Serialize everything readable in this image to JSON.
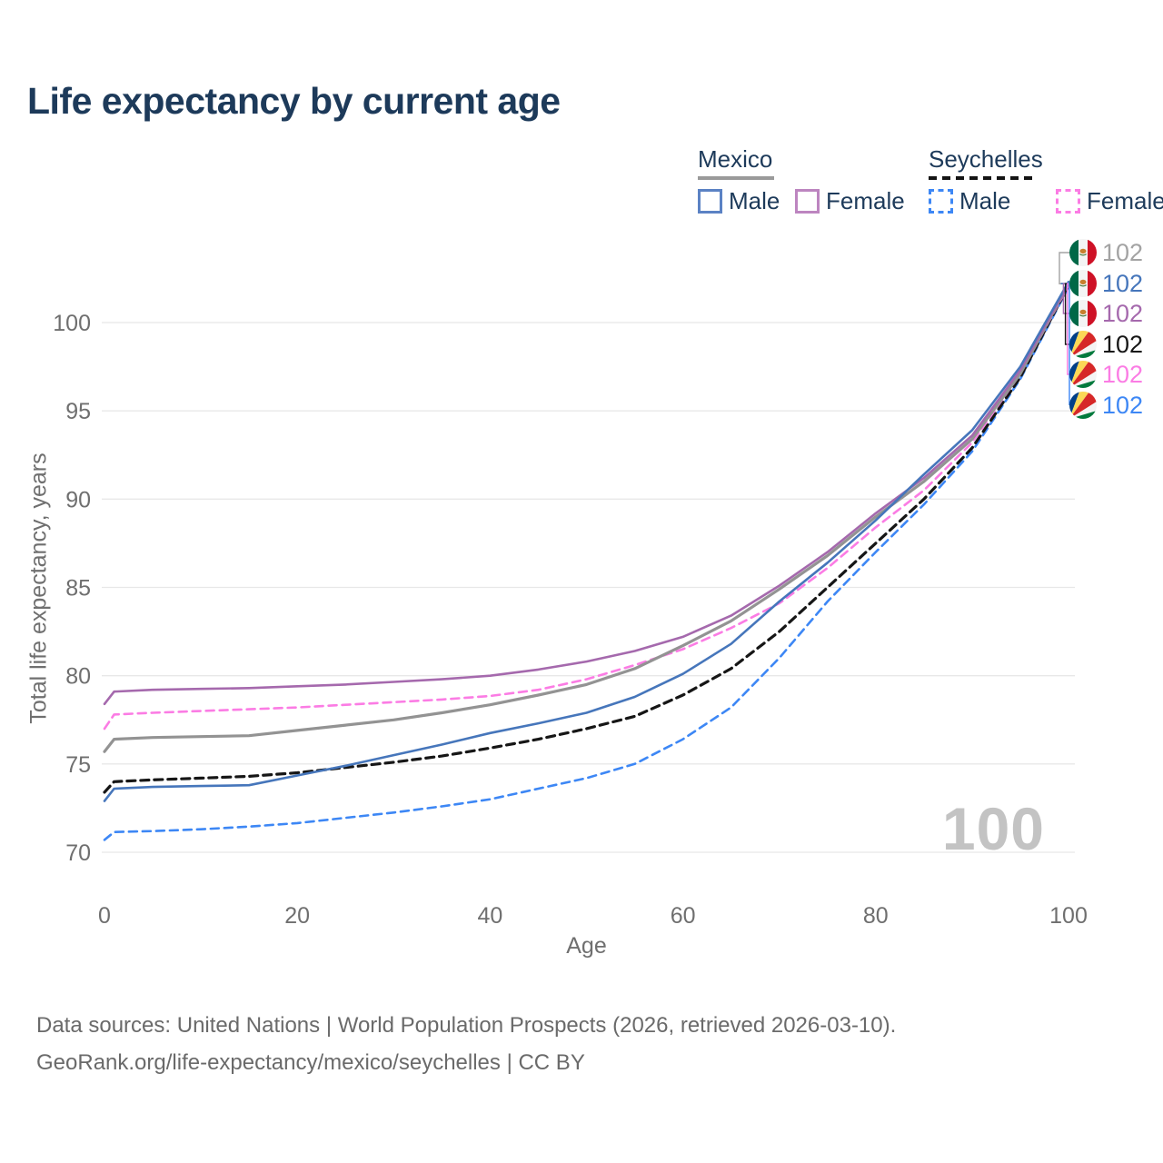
{
  "title": "Life expectancy by current age",
  "legend": {
    "mexico": {
      "label": "Mexico",
      "male_label": "Male",
      "female_label": "Female",
      "male_color": "#5b82c4",
      "female_color": "#bd85c0",
      "line_style": "solid",
      "underline_color": "#9a9a9a"
    },
    "seychelles": {
      "label": "Seychelles",
      "male_label": "Male",
      "female_label": "Female",
      "male_color": "#3d87f5",
      "female_color": "#fb7ce4",
      "line_style": "dashed",
      "underline_color": "#141414"
    }
  },
  "chart_data": {
    "type": "line",
    "title": "Life expectancy by current age",
    "xlabel": "Age",
    "ylabel": "Total life expectancy, years",
    "xlim": [
      0,
      100
    ],
    "ylim": [
      70,
      100
    ],
    "xticks": [
      0,
      20,
      40,
      60,
      80,
      100
    ],
    "yticks": [
      70,
      75,
      80,
      85,
      90,
      95,
      100
    ],
    "grid": "horizontal-only",
    "legend_position": "top-right",
    "x": [
      0,
      1,
      5,
      10,
      15,
      20,
      25,
      30,
      35,
      40,
      45,
      50,
      55,
      60,
      65,
      70,
      75,
      80,
      85,
      90,
      95,
      100
    ],
    "series": [
      {
        "name": "Seychelles — Male",
        "country": "Seychelles",
        "group": "Male",
        "style": "dashed",
        "color": "#3d87f5",
        "width": 2.6,
        "values": [
          70.7,
          71.15,
          71.2,
          71.3,
          71.45,
          71.65,
          71.95,
          72.25,
          72.6,
          73.0,
          73.6,
          74.2,
          75.0,
          76.4,
          78.2,
          81.0,
          84.2,
          87.0,
          89.7,
          92.7,
          96.8,
          102.0
        ]
      },
      {
        "name": "Seychelles — Total",
        "country": "Seychelles",
        "group": "Total",
        "style": "dashed",
        "color": "#161616",
        "width": 3.2,
        "values": [
          73.4,
          74.0,
          74.1,
          74.2,
          74.3,
          74.5,
          74.8,
          75.1,
          75.45,
          75.9,
          76.4,
          77.0,
          77.7,
          78.9,
          80.4,
          82.5,
          85.0,
          87.5,
          90.0,
          92.9,
          96.9,
          102.1
        ]
      },
      {
        "name": "Seychelles — Female",
        "country": "Seychelles",
        "group": "Female",
        "style": "dashed",
        "color": "#fb7ce4",
        "width": 2.6,
        "values": [
          77.0,
          77.8,
          77.9,
          78.0,
          78.1,
          78.2,
          78.35,
          78.5,
          78.65,
          78.85,
          79.2,
          79.8,
          80.6,
          81.5,
          82.7,
          84.1,
          86.1,
          88.4,
          90.5,
          93.2,
          97.1,
          102.1
        ]
      },
      {
        "name": "Mexico — Total",
        "country": "Mexico",
        "group": "Total",
        "style": "solid",
        "color": "#939393",
        "width": 3.2,
        "values": [
          75.7,
          76.4,
          76.5,
          76.55,
          76.6,
          76.9,
          77.2,
          77.5,
          77.9,
          78.35,
          78.9,
          79.5,
          80.4,
          81.7,
          83.1,
          84.9,
          86.8,
          89.0,
          91.0,
          93.4,
          97.1,
          102.2
        ]
      },
      {
        "name": "Mexico — Female",
        "country": "Mexico",
        "group": "Female",
        "style": "solid",
        "color": "#a569ad",
        "width": 2.6,
        "values": [
          78.4,
          79.1,
          79.2,
          79.25,
          79.3,
          79.4,
          79.5,
          79.65,
          79.8,
          80.0,
          80.35,
          80.8,
          81.4,
          82.2,
          83.4,
          85.1,
          87.0,
          89.2,
          91.2,
          93.6,
          97.3,
          102.2
        ]
      },
      {
        "name": "Mexico — Male",
        "country": "Mexico",
        "group": "Male",
        "style": "solid",
        "color": "#4676bb",
        "width": 2.6,
        "values": [
          72.9,
          73.6,
          73.7,
          73.75,
          73.8,
          74.35,
          74.9,
          75.5,
          76.1,
          76.75,
          77.3,
          77.9,
          78.8,
          80.1,
          81.8,
          84.2,
          86.4,
          88.8,
          91.4,
          93.9,
          97.5,
          102.3
        ]
      }
    ]
  },
  "endpoint_labels": [
    {
      "flag": "mexico",
      "series": "Mexico — Total",
      "value": "102",
      "color": "#a3a3a3"
    },
    {
      "flag": "mexico",
      "series": "Mexico — Male",
      "value": "102",
      "color": "#4676bb"
    },
    {
      "flag": "mexico",
      "series": "Mexico — Female",
      "value": "102",
      "color": "#a569ad"
    },
    {
      "flag": "seychelles",
      "series": "Seychelles — Total",
      "value": "102",
      "color": "#161616"
    },
    {
      "flag": "seychelles",
      "series": "Seychelles — Female",
      "value": "102",
      "color": "#fb7ce4"
    },
    {
      "flag": "seychelles",
      "series": "Seychelles — Male",
      "value": "102",
      "color": "#3d87f5"
    }
  ],
  "age_counter": "100",
  "footer": {
    "line1": "Data sources: United Nations | World Population Prospects (2026, retrieved 2026-03-10).",
    "line2": "GeoRank.org/life-expectancy/mexico/seychelles | CC BY"
  },
  "colors": {
    "title_text": "#1d3a5a",
    "axis_text": "#6f6f6f",
    "gridline": "#e8e8e8",
    "watermark": "#c3c3c3",
    "footer_text": "#6a6a6a"
  }
}
